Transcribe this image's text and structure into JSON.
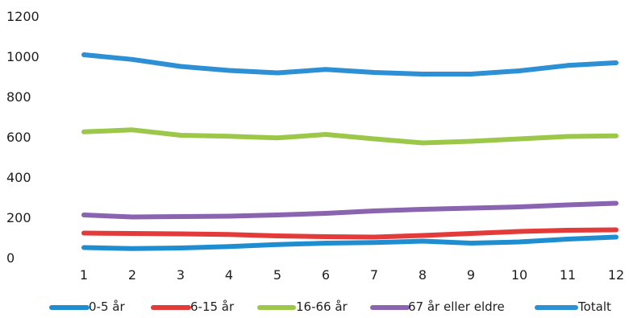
{
  "chart_data": {
    "type": "line",
    "x": [
      1,
      2,
      3,
      4,
      5,
      6,
      7,
      8,
      9,
      10,
      11,
      12
    ],
    "ylim": [
      0,
      1200
    ],
    "yticks": [
      0,
      200,
      400,
      600,
      800,
      1000,
      1200
    ],
    "grid": false,
    "legend_position": "bottom",
    "series": [
      {
        "name": "0-5 år",
        "color": "#1f8ed1",
        "values": [
          50,
          45,
          48,
          55,
          65,
          72,
          75,
          82,
          72,
          78,
          92,
          102
        ]
      },
      {
        "name": "6-15 år",
        "color": "#e33a3a",
        "values": [
          122,
          120,
          118,
          115,
          108,
          104,
          102,
          110,
          120,
          130,
          136,
          138
        ]
      },
      {
        "name": "16-66 år",
        "color": "#9cc84a",
        "values": [
          625,
          635,
          608,
          603,
          595,
          612,
          590,
          570,
          578,
          590,
          602,
          605
        ]
      },
      {
        "name": "67 år eller eldre",
        "color": "#8a63b1",
        "values": [
          212,
          202,
          204,
          206,
          212,
          220,
          232,
          240,
          246,
          252,
          262,
          270
        ]
      },
      {
        "name": "Totalt",
        "color": "#2d8fd4",
        "values": [
          1008,
          985,
          950,
          930,
          918,
          935,
          920,
          912,
          912,
          928,
          955,
          968
        ]
      }
    ]
  }
}
